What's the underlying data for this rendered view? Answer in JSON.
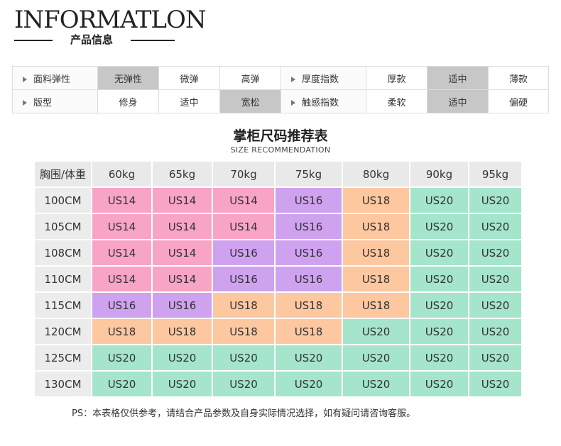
{
  "header": {
    "title": "INFORMATLON",
    "subtitle": "产品信息"
  },
  "info": {
    "rows": [
      [
        {
          "text": "面料弹性",
          "type": "label"
        },
        {
          "text": "无弹性",
          "selected": true
        },
        {
          "text": "微弹",
          "selected": false
        },
        {
          "text": "高弹",
          "selected": false
        },
        {
          "text": "厚度指数",
          "type": "label"
        },
        {
          "text": "厚款",
          "selected": false
        },
        {
          "text": "适中",
          "selected": true
        },
        {
          "text": "薄款",
          "selected": false
        }
      ],
      [
        {
          "text": "版型",
          "type": "label"
        },
        {
          "text": "修身",
          "selected": false
        },
        {
          "text": "适中",
          "selected": false
        },
        {
          "text": "宽松",
          "selected": true
        },
        {
          "text": "触感指数",
          "type": "label"
        },
        {
          "text": "柔软",
          "selected": false
        },
        {
          "text": "适中",
          "selected": true
        },
        {
          "text": "偏硬",
          "selected": false
        }
      ]
    ]
  },
  "size_table": {
    "title": "掌柜尺码推荐表",
    "subtitle": "SIZE RECOMMENDATION",
    "corner": "胸围/体重",
    "columns": [
      "60kg",
      "65kg",
      "70kg",
      "75kg",
      "80kg",
      "90kg",
      "95kg"
    ],
    "rows": [
      {
        "label": "100CM",
        "cells": [
          "US14",
          "US14",
          "US14",
          "US16",
          "US18",
          "US20",
          "US20"
        ]
      },
      {
        "label": "105CM",
        "cells": [
          "US14",
          "US14",
          "US14",
          "US16",
          "US18",
          "US20",
          "US20"
        ]
      },
      {
        "label": "108CM",
        "cells": [
          "US14",
          "US14",
          "US16",
          "US16",
          "US18",
          "US20",
          "US20"
        ]
      },
      {
        "label": "110CM",
        "cells": [
          "US14",
          "US14",
          "US16",
          "US16",
          "US18",
          "US20",
          "US20"
        ]
      },
      {
        "label": "115CM",
        "cells": [
          "US16",
          "US16",
          "US18",
          "US18",
          "US18",
          "US20",
          "US20"
        ]
      },
      {
        "label": "120CM",
        "cells": [
          "US18",
          "US18",
          "US18",
          "US18",
          "US20",
          "US20",
          "US20"
        ]
      },
      {
        "label": "125CM",
        "cells": [
          "US20",
          "US20",
          "US20",
          "US20",
          "US20",
          "US20",
          "US20"
        ]
      },
      {
        "label": "130CM",
        "cells": [
          "US20",
          "US20",
          "US20",
          "US20",
          "US20",
          "US20",
          "US20"
        ]
      }
    ],
    "colors": {
      "US14": "#f8a4c7",
      "US16": "#cfa2f0",
      "US18": "#fdc7a0",
      "US20": "#a4e5cc"
    }
  },
  "note": "PS：本表格仅供参考，请结合产品参数及自身实际情况选择，如有疑问请咨询客服。"
}
